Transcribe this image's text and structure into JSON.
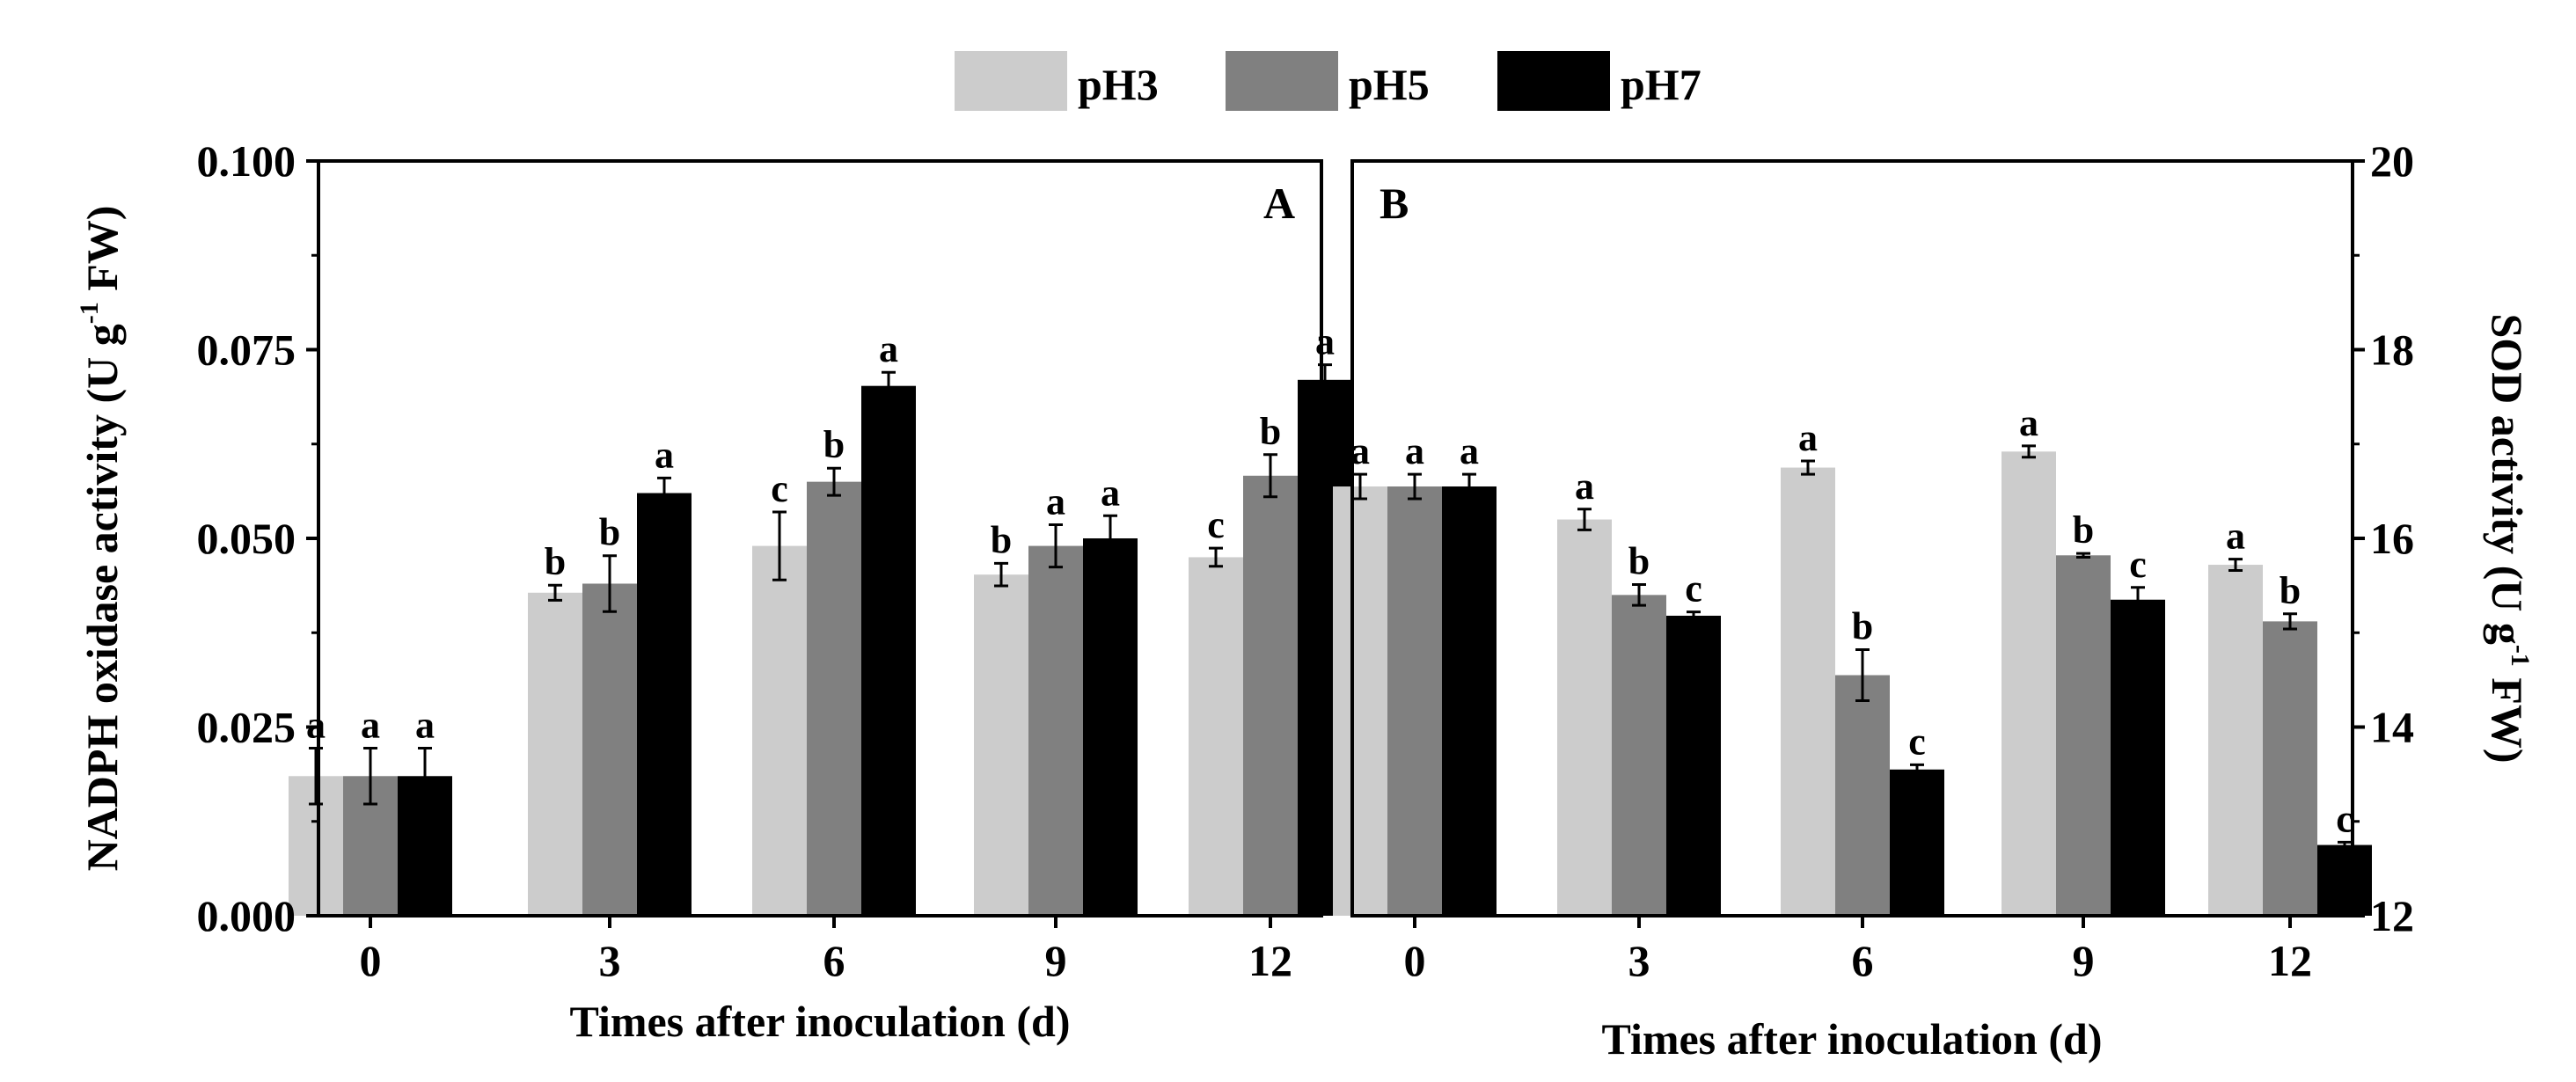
{
  "legend": [
    {
      "label": "pH3",
      "color": "#cccccc"
    },
    {
      "label": "pH5",
      "color": "#808080"
    },
    {
      "label": "pH7",
      "color": "#000000"
    }
  ],
  "chart_data": [
    {
      "type": "bar",
      "panel_label": "A",
      "categories": [
        "0",
        "3",
        "6",
        "9",
        "12"
      ],
      "series": [
        {
          "name": "pH3",
          "values": [
            0.0185,
            0.0428,
            0.049,
            0.0452,
            0.0475
          ],
          "errors": [
            0.0037,
            0.001,
            0.0045,
            0.0015,
            0.0012
          ],
          "letters": [
            "a",
            "b",
            "c",
            "b",
            "c"
          ]
        },
        {
          "name": "pH5",
          "values": [
            0.0185,
            0.044,
            0.0575,
            0.049,
            0.0583
          ],
          "errors": [
            0.0037,
            0.0037,
            0.0018,
            0.0028,
            0.0028
          ],
          "letters": [
            "a",
            "b",
            "b",
            "a",
            "b"
          ]
        },
        {
          "name": "pH7",
          "values": [
            0.0185,
            0.056,
            0.0702,
            0.05,
            0.071
          ],
          "errors": [
            0.0037,
            0.002,
            0.0018,
            0.003,
            0.002
          ],
          "letters": [
            "a",
            "a",
            "a",
            "a",
            "a"
          ]
        }
      ],
      "ylim": [
        0,
        0.1
      ],
      "yticks": [
        "0.000",
        "0.025",
        "0.050",
        "0.075",
        "0.100"
      ],
      "ylabel": "NADPH oxidase activity (U g-1 FW)",
      "xlabel": "Times after inoculation (d)",
      "legend_position": "top"
    },
    {
      "type": "bar",
      "panel_label": "B",
      "categories": [
        "0",
        "3",
        "6",
        "9",
        "12"
      ],
      "series": [
        {
          "name": "pH3",
          "values": [
            16.55,
            16.2,
            16.75,
            16.92,
            15.72
          ],
          "errors": [
            0.13,
            0.11,
            0.07,
            0.06,
            0.06
          ],
          "letters": [
            "a",
            "a",
            "a",
            "a",
            "a"
          ]
        },
        {
          "name": "pH5",
          "values": [
            16.55,
            15.4,
            14.55,
            15.82,
            15.12
          ],
          "errors": [
            0.13,
            0.11,
            0.27,
            0.02,
            0.08
          ],
          "letters": [
            "a",
            "b",
            "b",
            "b",
            "b"
          ]
        },
        {
          "name": "pH7",
          "values": [
            16.55,
            15.18,
            13.55,
            15.35,
            12.75
          ],
          "errors": [
            0.13,
            0.04,
            0.05,
            0.13,
            0.03
          ],
          "letters": [
            "a",
            "c",
            "c",
            "c",
            "c"
          ]
        }
      ],
      "ylim": [
        12,
        20
      ],
      "yticks": [
        "12",
        "14",
        "16",
        "18",
        "20"
      ],
      "ylabel": "SOD activity (U g-1 FW)",
      "xlabel": "Times after inoculation (d)",
      "y_axis_side": "right"
    }
  ]
}
